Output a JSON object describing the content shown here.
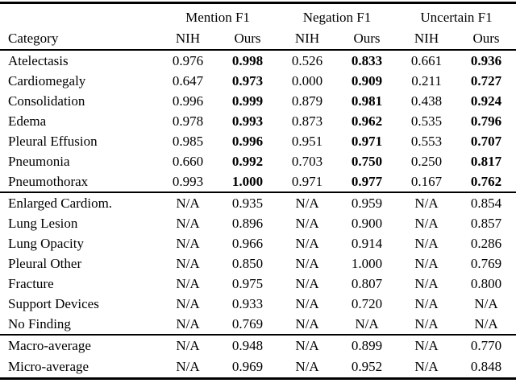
{
  "colors": {
    "background": "#ffffff",
    "text": "#000000",
    "rule": "#000000"
  },
  "table": {
    "category_header": "Category",
    "col_groups": [
      {
        "label": "Mention F1"
      },
      {
        "label": "Negation F1"
      },
      {
        "label": "Uncertain F1"
      }
    ],
    "sub_headers": [
      "NIH",
      "Ours",
      "NIH",
      "Ours",
      "NIH",
      "Ours"
    ],
    "blocks": [
      {
        "bold_ours": true,
        "rows": [
          {
            "category": "Atelectasis",
            "values": [
              "0.976",
              "0.998",
              "0.526",
              "0.833",
              "0.661",
              "0.936"
            ]
          },
          {
            "category": "Cardiomegaly",
            "values": [
              "0.647",
              "0.973",
              "0.000",
              "0.909",
              "0.211",
              "0.727"
            ]
          },
          {
            "category": "Consolidation",
            "values": [
              "0.996",
              "0.999",
              "0.879",
              "0.981",
              "0.438",
              "0.924"
            ]
          },
          {
            "category": "Edema",
            "values": [
              "0.978",
              "0.993",
              "0.873",
              "0.962",
              "0.535",
              "0.796"
            ]
          },
          {
            "category": "Pleural Effusion",
            "values": [
              "0.985",
              "0.996",
              "0.951",
              "0.971",
              "0.553",
              "0.707"
            ]
          },
          {
            "category": "Pneumonia",
            "values": [
              "0.660",
              "0.992",
              "0.703",
              "0.750",
              "0.250",
              "0.817"
            ]
          },
          {
            "category": "Pneumothorax",
            "values": [
              "0.993",
              "1.000",
              "0.971",
              "0.977",
              "0.167",
              "0.762"
            ]
          }
        ]
      },
      {
        "bold_ours": false,
        "rows": [
          {
            "category": "Enlarged Cardiom.",
            "values": [
              "N/A",
              "0.935",
              "N/A",
              "0.959",
              "N/A",
              "0.854"
            ]
          },
          {
            "category": "Lung Lesion",
            "values": [
              "N/A",
              "0.896",
              "N/A",
              "0.900",
              "N/A",
              "0.857"
            ]
          },
          {
            "category": "Lung Opacity",
            "values": [
              "N/A",
              "0.966",
              "N/A",
              "0.914",
              "N/A",
              "0.286"
            ]
          },
          {
            "category": "Pleural Other",
            "values": [
              "N/A",
              "0.850",
              "N/A",
              "1.000",
              "N/A",
              "0.769"
            ]
          },
          {
            "category": "Fracture",
            "values": [
              "N/A",
              "0.975",
              "N/A",
              "0.807",
              "N/A",
              "0.800"
            ]
          },
          {
            "category": "Support Devices",
            "values": [
              "N/A",
              "0.933",
              "N/A",
              "0.720",
              "N/A",
              "N/A"
            ]
          },
          {
            "category": "No Finding",
            "values": [
              "N/A",
              "0.769",
              "N/A",
              "N/A",
              "N/A",
              "N/A"
            ]
          }
        ]
      },
      {
        "bold_ours": false,
        "rows": [
          {
            "category": "Macro-average",
            "values": [
              "N/A",
              "0.948",
              "N/A",
              "0.899",
              "N/A",
              "0.770"
            ]
          },
          {
            "category": "Micro-average",
            "values": [
              "N/A",
              "0.969",
              "N/A",
              "0.952",
              "N/A",
              "0.848"
            ]
          }
        ]
      }
    ]
  }
}
